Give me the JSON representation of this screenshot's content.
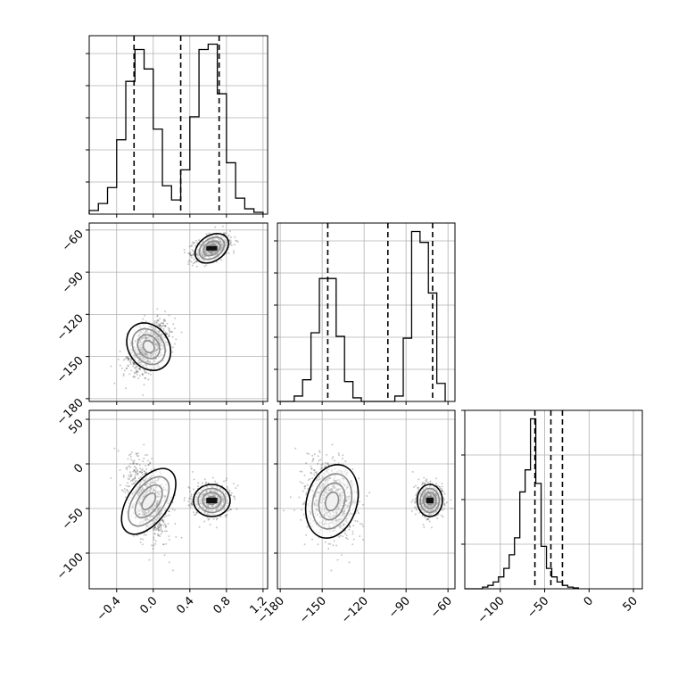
{
  "chart_data": {
    "type": "corner",
    "title": "",
    "grid": true,
    "quantile_lines_style": "dashed",
    "parameters": [
      {
        "label": "",
        "range": [
          -0.7,
          1.25
        ],
        "ticks": [
          -0.4,
          0.0,
          0.4,
          0.8,
          1.2
        ],
        "tick_labels": [
          "−0.4",
          "0.0",
          "0.4",
          "0.8",
          "1.2"
        ],
        "quantiles": [
          -0.21,
          0.3,
          0.72
        ],
        "histogram": {
          "bin_start": -0.7,
          "bin_width": 0.1,
          "counts": [
            0.02,
            0.06,
            0.15,
            0.42,
            0.75,
            0.93,
            0.82,
            0.48,
            0.16,
            0.08,
            0.25,
            0.55,
            0.93,
            0.96,
            0.68,
            0.29,
            0.09,
            0.03,
            0.01
          ]
        }
      },
      {
        "label": "",
        "range": [
          -182,
          -55
        ],
        "ticks": [
          -180,
          -150,
          -120,
          -90,
          -60
        ],
        "tick_labels": [
          "−180",
          "−150",
          "−120",
          "−90",
          "−60"
        ],
        "quantiles": [
          -146,
          -103,
          -71
        ],
        "histogram": {
          "bin_start": -170,
          "bin_width": 6,
          "counts": [
            0.03,
            0.12,
            0.38,
            0.68,
            0.68,
            0.36,
            0.11,
            0.02,
            0.0,
            0.0,
            0.0,
            0.0,
            0.03,
            0.35,
            0.94,
            0.88,
            0.6,
            0.1
          ]
        }
      },
      {
        "label": "",
        "range": [
          -140,
          60
        ],
        "ticks": [
          -100,
          -50,
          0,
          50
        ],
        "tick_labels": [
          "−100",
          "−50",
          "0",
          "50"
        ],
        "quantiles": [
          -61,
          -43,
          -30
        ],
        "histogram": {
          "bin_start": -120,
          "bin_width": 6,
          "counts": [
            0.01,
            0.02,
            0.04,
            0.07,
            0.12,
            0.2,
            0.3,
            0.57,
            0.7,
            1.0,
            0.62,
            0.25,
            0.12,
            0.07,
            0.04,
            0.02,
            0.01,
            0.005
          ]
        }
      }
    ],
    "clusters": [
      {
        "mean": [
          -0.05,
          -143,
          -42
        ],
        "std": [
          0.11,
          9,
          21
        ]
      },
      {
        "mean": [
          0.64,
          -73,
          -41
        ],
        "std": [
          0.1,
          4.5,
          9
        ]
      }
    ]
  }
}
